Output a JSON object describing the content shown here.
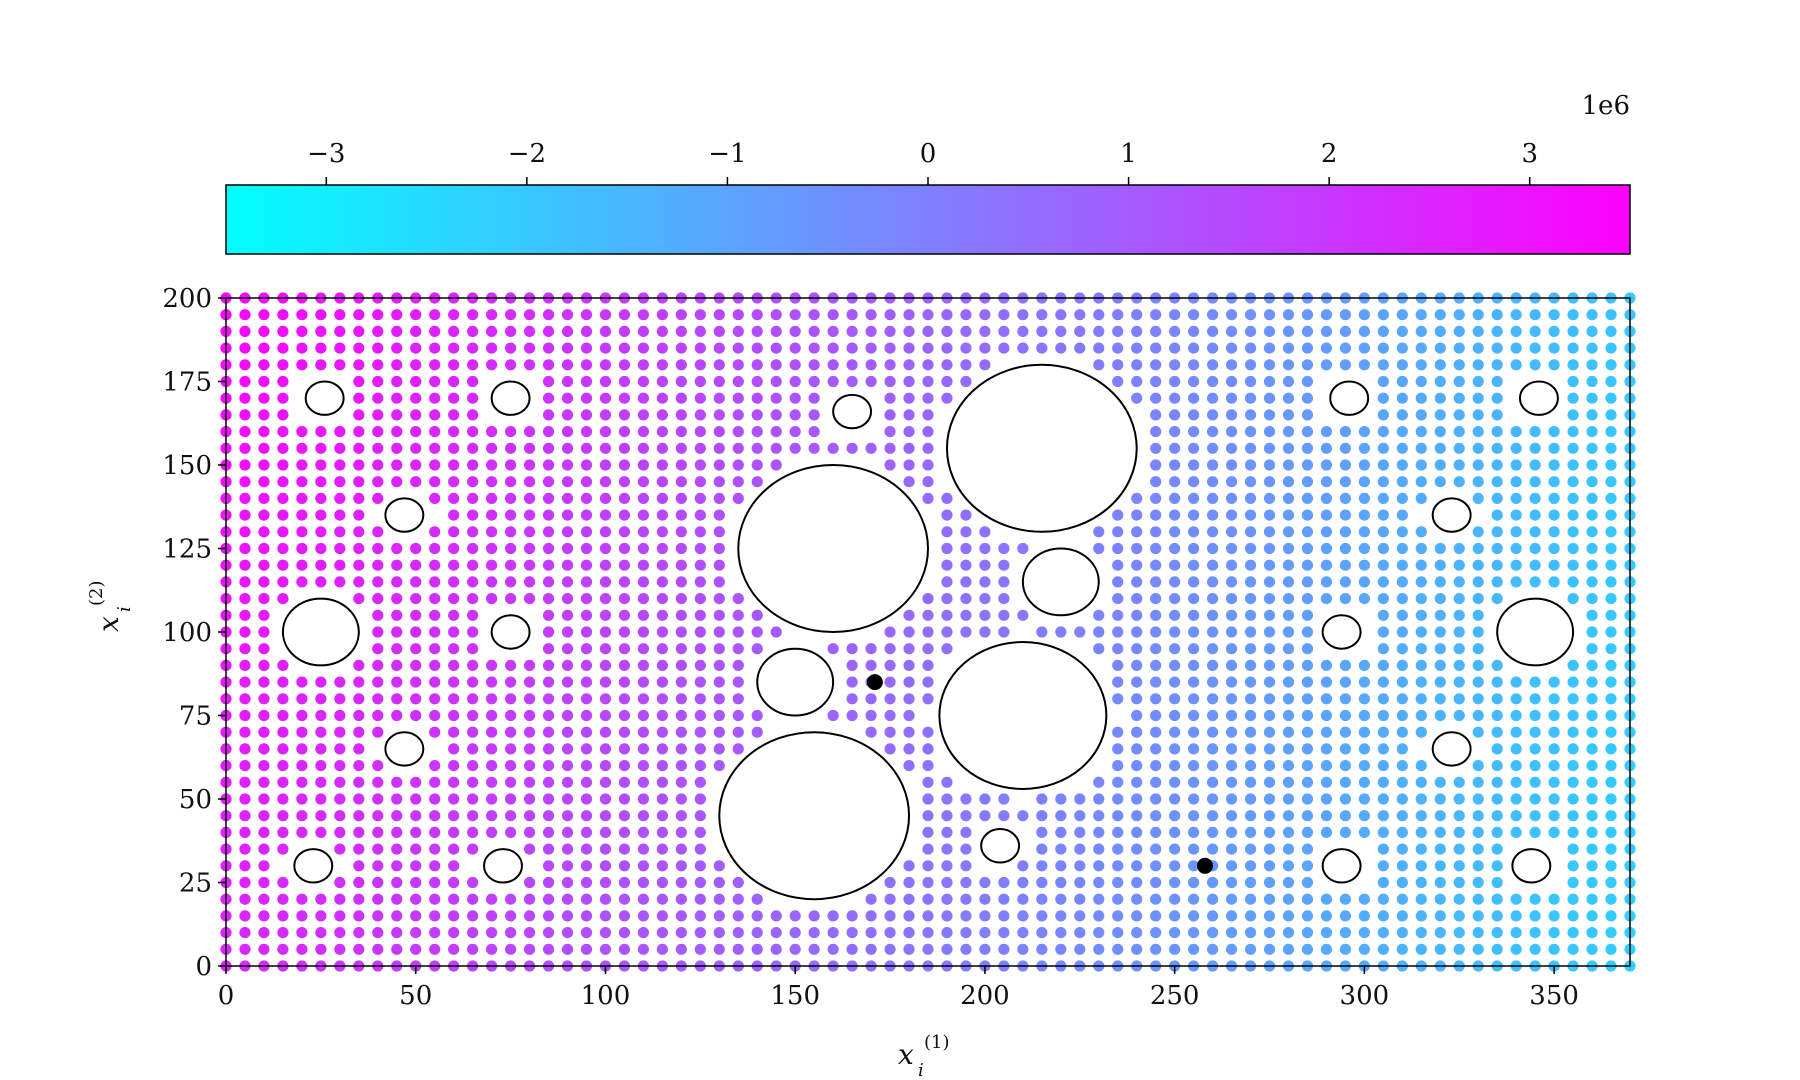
{
  "chart_data": {
    "type": "scatter",
    "colorbar": {
      "ticks": [
        "−3",
        "−2",
        "−1",
        "0",
        "1",
        "2",
        "3"
      ],
      "tick_values": [
        -3,
        -2,
        -1,
        0,
        1,
        2,
        3
      ],
      "range": [
        -3.5,
        3.5
      ],
      "offset_label": "1e6",
      "colormap": "cool",
      "color_low": "#00ffff",
      "color_high": "#ff00ff"
    },
    "x_axis": {
      "label_base": "x",
      "label_sub": "i",
      "label_sup": "(1)",
      "ticks": [
        "0",
        "50",
        "100",
        "150",
        "200",
        "250",
        "300",
        "350"
      ],
      "tick_values": [
        0,
        50,
        100,
        150,
        200,
        250,
        300,
        350
      ],
      "xlim": [
        0,
        370
      ]
    },
    "y_axis": {
      "label_base": "x",
      "label_sub": "i",
      "label_sup": "(2)",
      "ticks": [
        "0",
        "25",
        "50",
        "75",
        "100",
        "125",
        "150",
        "175",
        "200"
      ],
      "tick_values": [
        0,
        25,
        50,
        75,
        100,
        125,
        150,
        175,
        200
      ],
      "ylim": [
        0,
        200
      ]
    },
    "grid_spacing": 5,
    "field_description_values": {
      "value_at_origin": 2.6,
      "value_at_top_left": 3.3,
      "value_at_right": -2.3,
      "units_scale": 1000000
    },
    "holes": [
      {
        "cx": 25,
        "cy": 100,
        "r": 10
      },
      {
        "cx": 345,
        "cy": 100,
        "r": 10
      },
      {
        "cx": 26,
        "cy": 170,
        "r": 5
      },
      {
        "cx": 75,
        "cy": 170,
        "r": 5
      },
      {
        "cx": 296,
        "cy": 170,
        "r": 5
      },
      {
        "cx": 346,
        "cy": 170,
        "r": 5
      },
      {
        "cx": 47,
        "cy": 135,
        "r": 5
      },
      {
        "cx": 323,
        "cy": 135,
        "r": 5
      },
      {
        "cx": 75,
        "cy": 100,
        "r": 5
      },
      {
        "cx": 294,
        "cy": 100,
        "r": 5
      },
      {
        "cx": 47,
        "cy": 65,
        "r": 5
      },
      {
        "cx": 323,
        "cy": 65,
        "r": 5
      },
      {
        "cx": 23,
        "cy": 30,
        "r": 5
      },
      {
        "cx": 73,
        "cy": 30,
        "r": 5
      },
      {
        "cx": 294,
        "cy": 30,
        "r": 5
      },
      {
        "cx": 344,
        "cy": 30,
        "r": 5
      },
      {
        "cx": 165,
        "cy": 166,
        "r": 5
      },
      {
        "cx": 204,
        "cy": 36,
        "r": 5
      },
      {
        "cx": 150,
        "cy": 85,
        "r": 10
      },
      {
        "cx": 220,
        "cy": 115,
        "r": 10
      },
      {
        "cx": 160,
        "cy": 125,
        "r": 25
      },
      {
        "cx": 155,
        "cy": 45,
        "r": 25
      },
      {
        "cx": 215,
        "cy": 155,
        "r": 25
      },
      {
        "cx": 210,
        "cy": 75,
        "r": 22
      }
    ],
    "markers": [
      {
        "x": 171,
        "y": 85
      },
      {
        "x": 258,
        "y": 30
      }
    ]
  }
}
